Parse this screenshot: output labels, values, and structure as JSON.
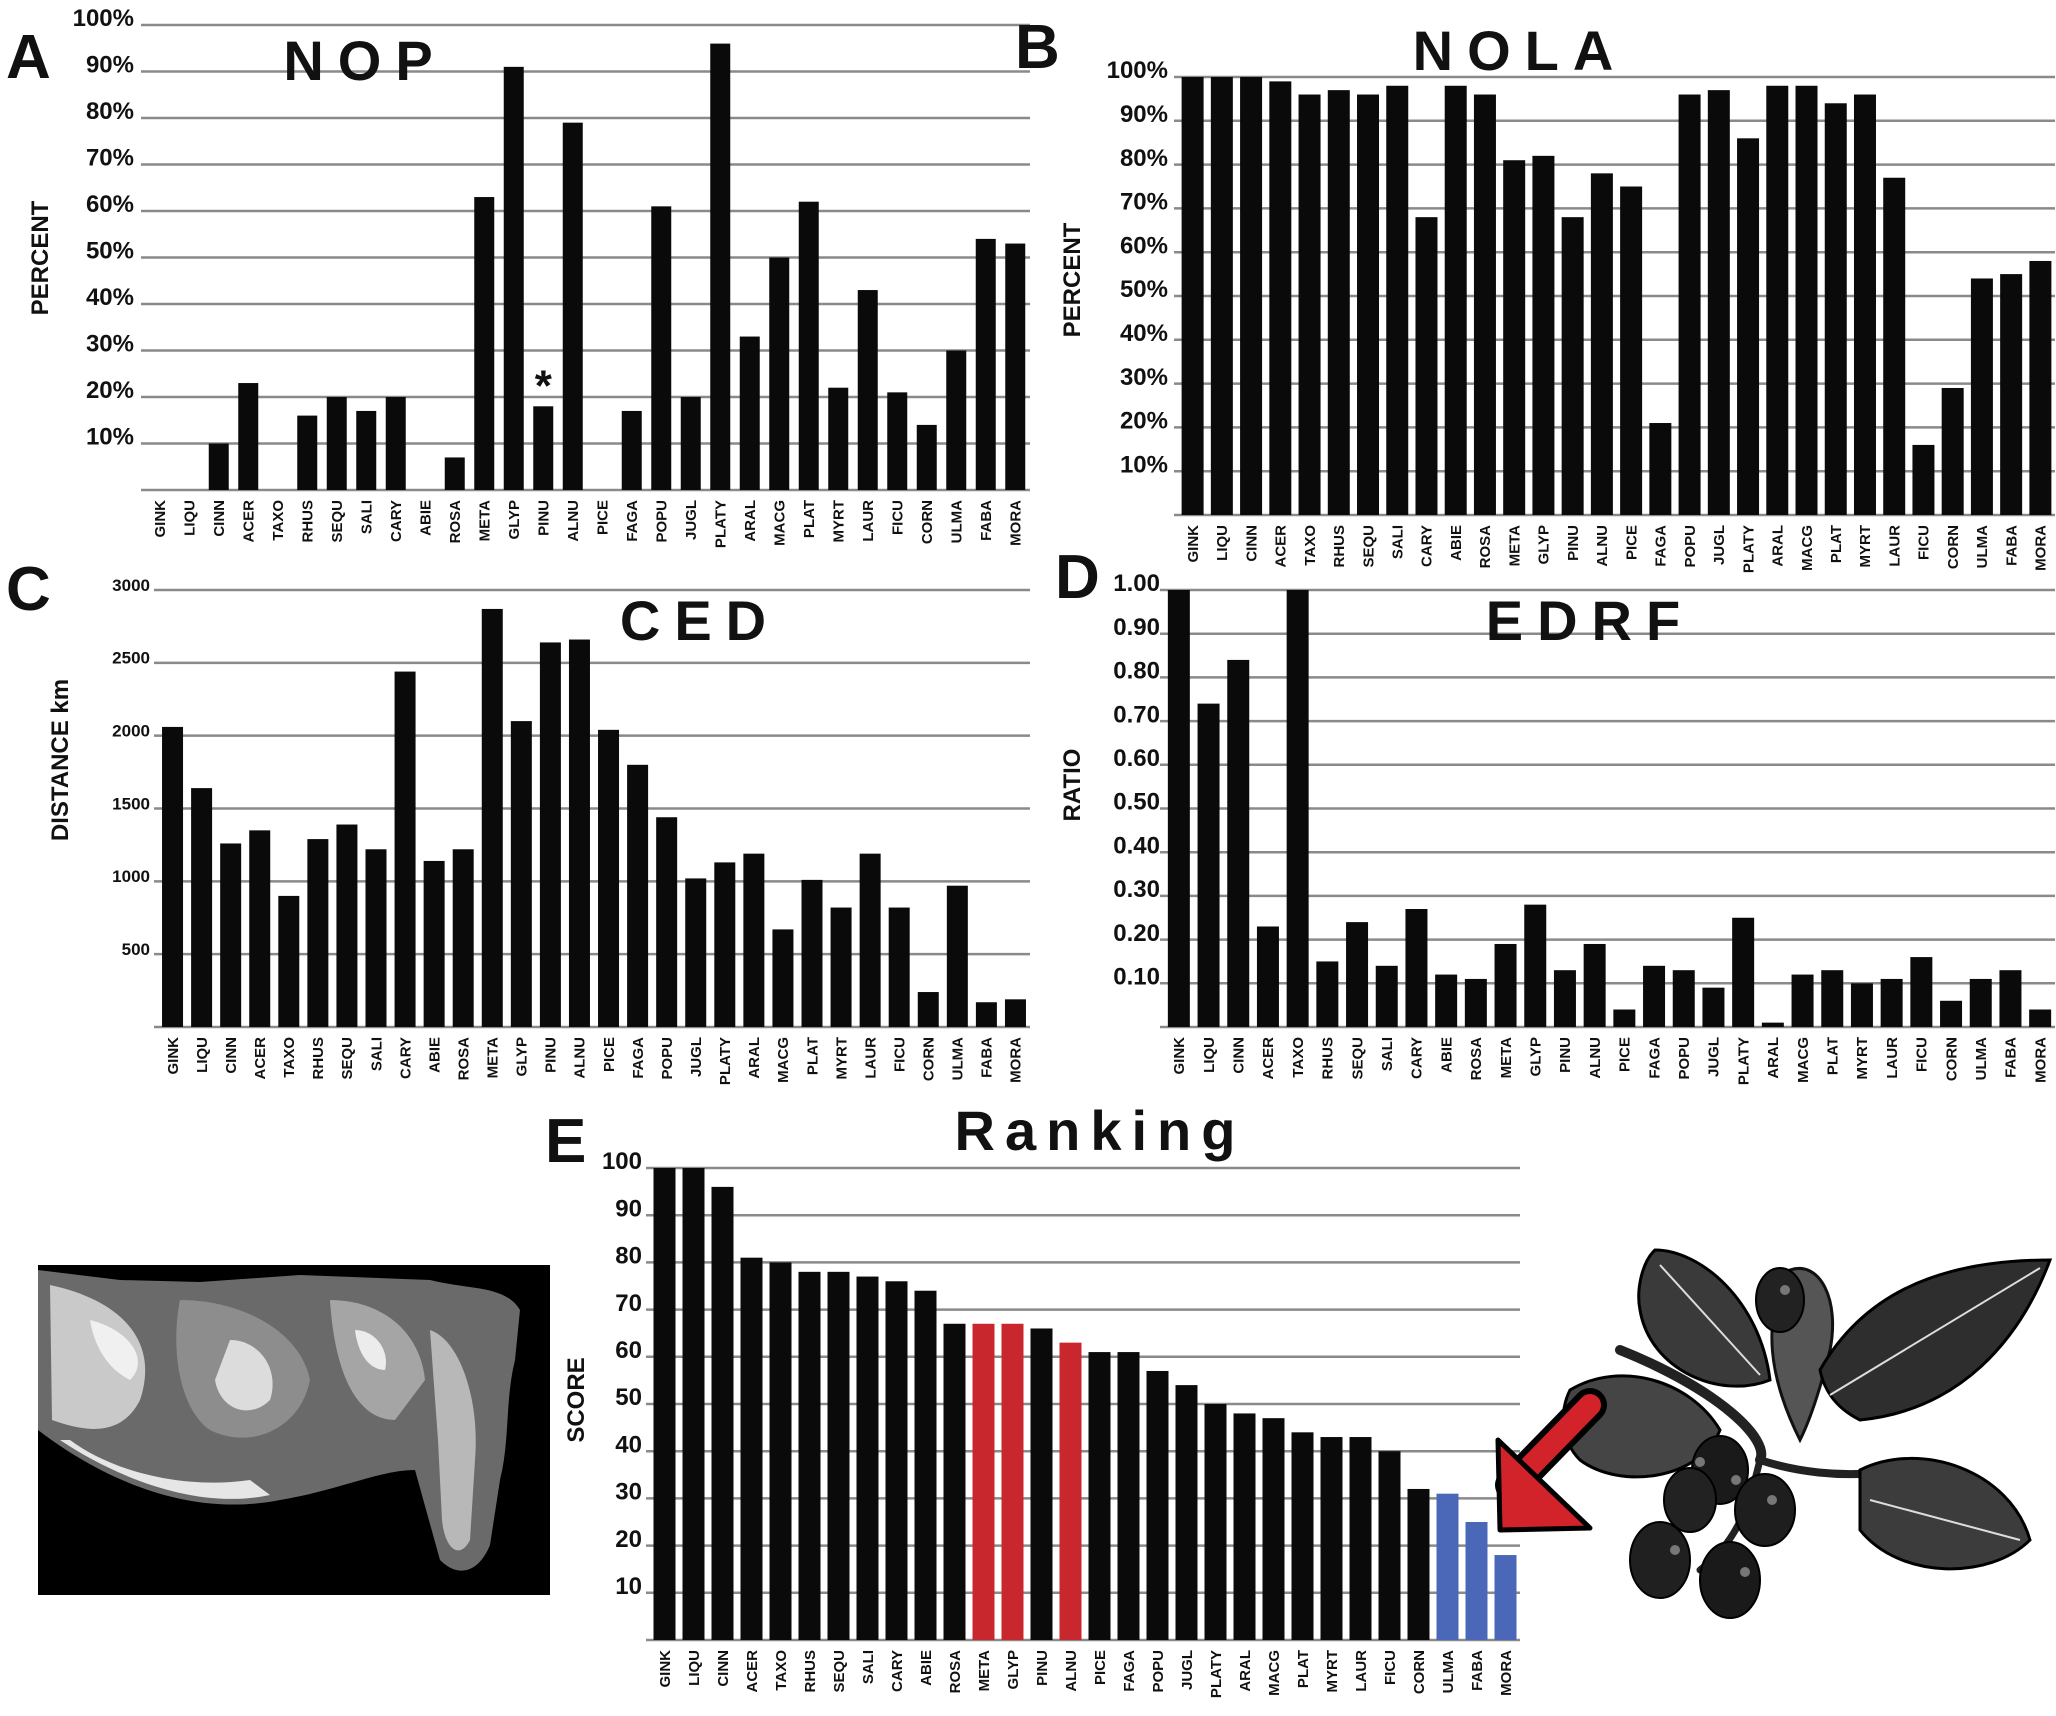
{
  "figure": {
    "colors": {
      "bar": "#0a0a0a",
      "grid": "#8a8a8a",
      "highlight_red": "#c8282d",
      "highlight_blue": "#4b68b8"
    }
  },
  "chart_data": [
    {
      "panel": "A",
      "type": "bar",
      "title": "NOP",
      "ylabel": "PERCENT",
      "xlabel": "",
      "ylim": [
        0,
        100
      ],
      "unit_suffix": "%",
      "yticks": [
        10,
        20,
        30,
        40,
        50,
        60,
        70,
        80,
        90,
        100
      ],
      "categories": [
        "GINK",
        "LIQU",
        "CINN",
        "ACER",
        "TAXO",
        "RHUS",
        "SEQU",
        "SALI",
        "CARY",
        "ABIE",
        "ROSA",
        "META",
        "GLYP",
        "PINU",
        "ALNU",
        "PICE",
        "FAGA",
        "POPU",
        "JUGL",
        "PLATY",
        "ARAL",
        "MACG",
        "PLAT",
        "MYRT",
        "LAUR",
        "FICU",
        "CORN",
        "ULMA",
        "FABA",
        "MORA"
      ],
      "values": [
        0,
        0,
        10,
        23,
        0,
        16,
        20,
        17,
        20,
        0,
        7,
        63,
        91,
        18,
        79,
        0,
        17,
        61,
        20,
        96,
        33,
        50,
        62,
        22,
        43,
        21,
        14,
        30,
        54,
        53
      ],
      "annotations": [
        {
          "category": "PINU",
          "text": "*"
        }
      ]
    },
    {
      "panel": "B",
      "type": "bar",
      "title": "NOLA",
      "ylabel": "PERCENT",
      "xlabel": "",
      "ylim": [
        0,
        100
      ],
      "unit_suffix": "%",
      "yticks": [
        10,
        20,
        30,
        40,
        50,
        60,
        70,
        80,
        90,
        100
      ],
      "categories": [
        "GINK",
        "LIQU",
        "CINN",
        "ACER",
        "TAXO",
        "RHUS",
        "SEQU",
        "SALI",
        "CARY",
        "ABIE",
        "ROSA",
        "META",
        "GLYP",
        "PINU",
        "ALNU",
        "PICE",
        "FAGA",
        "POPU",
        "JUGL",
        "PLATY",
        "ARAL",
        "MACG",
        "PLAT",
        "MYRT",
        "LAUR",
        "FICU",
        "CORN",
        "ULMA",
        "FABA",
        "MORA"
      ],
      "values": [
        100,
        100,
        100,
        99,
        96,
        97,
        96,
        98,
        68,
        98,
        96,
        81,
        82,
        68,
        78,
        75,
        21,
        96,
        97,
        86,
        98,
        98,
        94,
        96,
        77,
        16,
        29,
        54,
        55,
        58
      ]
    },
    {
      "panel": "C",
      "type": "bar",
      "title": "CED",
      "ylabel": "DISTANCE km",
      "xlabel": "",
      "ylim": [
        0,
        3000
      ],
      "unit_suffix": "",
      "yticks": [
        500,
        1000,
        1500,
        2000,
        2500,
        3000
      ],
      "categories": [
        "GINK",
        "LIQU",
        "CINN",
        "ACER",
        "TAXO",
        "RHUS",
        "SEQU",
        "SALI",
        "CARY",
        "ABIE",
        "ROSA",
        "META",
        "GLYP",
        "PINU",
        "ALNU",
        "PICE",
        "FAGA",
        "POPU",
        "JUGL",
        "PLATY",
        "ARAL",
        "MACG",
        "PLAT",
        "MYRT",
        "LAUR",
        "FICU",
        "CORN",
        "ULMA",
        "FABA",
        "MORA"
      ],
      "values": [
        2060,
        1640,
        1260,
        1350,
        900,
        1290,
        1390,
        1220,
        2440,
        1140,
        1220,
        2870,
        2100,
        2640,
        2660,
        2040,
        1800,
        1440,
        1020,
        1130,
        1190,
        670,
        1010,
        820,
        1190,
        820,
        240,
        970,
        170,
        190
      ]
    },
    {
      "panel": "D",
      "type": "bar",
      "title": "EDRF",
      "ylabel": "RATIO",
      "xlabel": "",
      "ylim": [
        0,
        1
      ],
      "unit_suffix": "",
      "yticks": [
        0.1,
        0.2,
        0.3,
        0.4,
        0.5,
        0.6,
        0.7,
        0.8,
        0.9,
        1.0
      ],
      "categories": [
        "GINK",
        "LIQU",
        "CINN",
        "ACER",
        "TAXO",
        "RHUS",
        "SEQU",
        "SALI",
        "CARY",
        "ABIE",
        "ROSA",
        "META",
        "GLYP",
        "PINU",
        "ALNU",
        "PICE",
        "FAGA",
        "POPU",
        "JUGL",
        "PLATY",
        "ARAL",
        "MACG",
        "PLAT",
        "MYRT",
        "LAUR",
        "FICU",
        "CORN",
        "ULMA",
        "FABA",
        "MORA"
      ],
      "values": [
        1.0,
        0.74,
        0.84,
        0.23,
        1.0,
        0.15,
        0.24,
        0.14,
        0.27,
        0.12,
        0.11,
        0.19,
        0.28,
        0.13,
        0.19,
        0.04,
        0.14,
        0.13,
        0.09,
        0.25,
        0.01,
        0.12,
        0.13,
        0.1,
        0.11,
        0.16,
        0.06,
        0.11,
        0.13,
        0.04
      ]
    },
    {
      "panel": "E",
      "type": "bar",
      "title": "Ranking",
      "ylabel": "SCORE",
      "xlabel": "",
      "ylim": [
        0,
        100
      ],
      "unit_suffix": "",
      "yticks": [
        10,
        20,
        30,
        40,
        50,
        60,
        70,
        80,
        90,
        100
      ],
      "categories": [
        "GINK",
        "LIQU",
        "CINN",
        "ACER",
        "TAXO",
        "RHUS",
        "SEQU",
        "SALI",
        "CARY",
        "ABIE",
        "ROSA",
        "META",
        "GLYP",
        "PINU",
        "ALNU",
        "PICE",
        "FAGA",
        "POPU",
        "JUGL",
        "PLATY",
        "ARAL",
        "MACG",
        "PLAT",
        "MYRT",
        "LAUR",
        "FICU",
        "CORN",
        "ULMA",
        "FABA",
        "MORA"
      ],
      "values": [
        100,
        100,
        96,
        81,
        80,
        78,
        78,
        77,
        76,
        74,
        67,
        67,
        67,
        66,
        63,
        61,
        61,
        57,
        54,
        50,
        48,
        47,
        44,
        43,
        43,
        40,
        32,
        31,
        25,
        18
      ],
      "bar_colors": [
        "bar",
        "bar",
        "bar",
        "bar",
        "bar",
        "bar",
        "bar",
        "bar",
        "bar",
        "bar",
        "bar",
        "highlight_red",
        "highlight_red",
        "bar",
        "highlight_red",
        "bar",
        "bar",
        "bar",
        "bar",
        "bar",
        "bar",
        "bar",
        "bar",
        "bar",
        "bar",
        "bar",
        "bar",
        "highlight_blue",
        "highlight_blue",
        "highlight_blue"
      ]
    }
  ]
}
